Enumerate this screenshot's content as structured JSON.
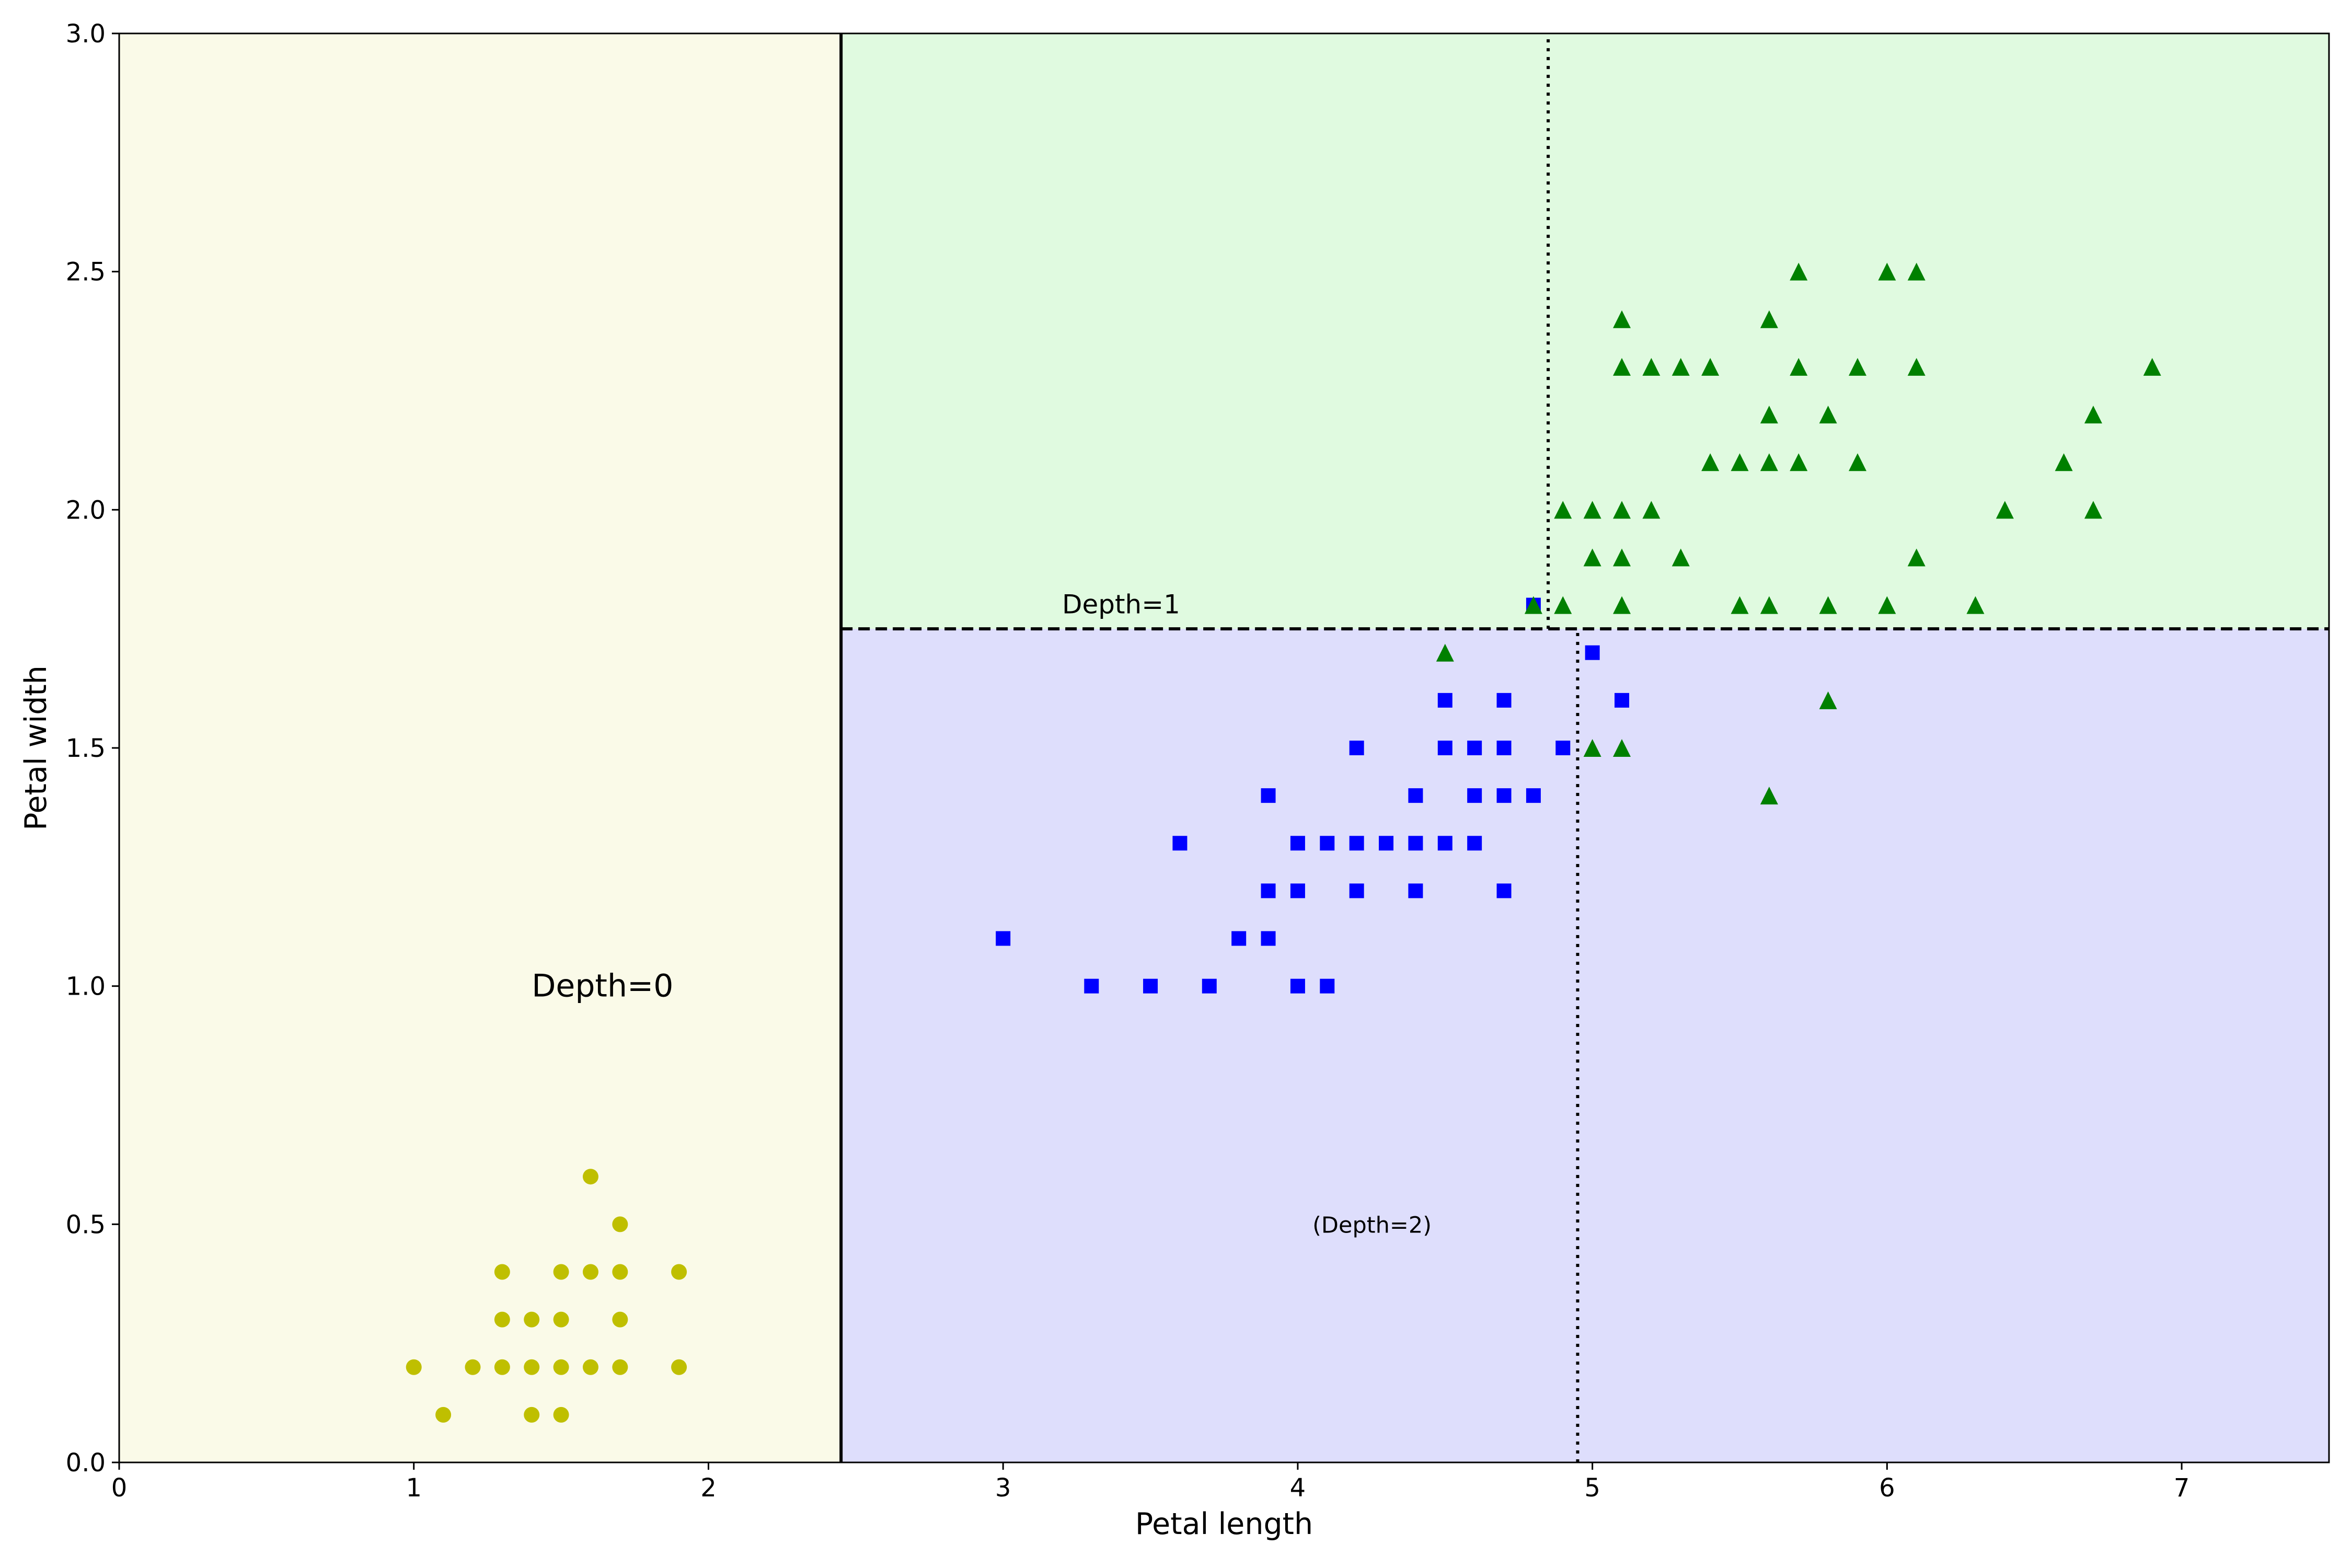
{
  "chart_data": {
    "type": "scatter",
    "xlabel": "Petal length",
    "ylabel": "Petal width",
    "xlim": [
      0,
      7.5
    ],
    "ylim": [
      0,
      3.0
    ],
    "xticks": [
      "0",
      "1",
      "2",
      "3",
      "4",
      "5",
      "6",
      "7"
    ],
    "yticks": [
      "0.0",
      "0.5",
      "1.0",
      "1.5",
      "2.0",
      "2.5",
      "3.0"
    ],
    "grid": false,
    "legend": "none",
    "regions": [
      {
        "x": [
          0,
          2.45
        ],
        "y": [
          0,
          3.0
        ],
        "color": "#fafae8"
      },
      {
        "x": [
          2.45,
          7.5
        ],
        "y": [
          1.75,
          3.0
        ],
        "color": "#e0fae0"
      },
      {
        "x": [
          2.45,
          7.5
        ],
        "y": [
          0,
          1.75
        ],
        "color": "#dedefc"
      }
    ],
    "boundaries": [
      {
        "style": "solid",
        "orientation": "vertical",
        "x": 2.45,
        "y": [
          0,
          3.0
        ]
      },
      {
        "style": "dashed",
        "orientation": "horizontal",
        "y": 1.75,
        "x": [
          2.45,
          7.5
        ]
      },
      {
        "style": "dotted",
        "orientation": "vertical",
        "x": 4.85,
        "y": [
          1.75,
          3.0
        ]
      },
      {
        "style": "dotted",
        "orientation": "vertical",
        "x": 4.95,
        "y": [
          0,
          1.75
        ]
      }
    ],
    "annotations": [
      {
        "text": "Depth=0",
        "x": 1.4,
        "y": 1.0
      },
      {
        "text": "Depth=1",
        "x": 3.2,
        "y": 1.8
      },
      {
        "text": "(Depth=2)",
        "x": 4.05,
        "y": 0.5
      }
    ],
    "series": [
      {
        "marker": "circle",
        "color": "#bfbf00",
        "points": [
          [
            1.0,
            0.2
          ],
          [
            1.1,
            0.1
          ],
          [
            1.2,
            0.2
          ],
          [
            1.3,
            0.2
          ],
          [
            1.3,
            0.3
          ],
          [
            1.3,
            0.4
          ],
          [
            1.4,
            0.1
          ],
          [
            1.4,
            0.2
          ],
          [
            1.4,
            0.3
          ],
          [
            1.5,
            0.1
          ],
          [
            1.5,
            0.2
          ],
          [
            1.5,
            0.3
          ],
          [
            1.5,
            0.4
          ],
          [
            1.6,
            0.2
          ],
          [
            1.6,
            0.4
          ],
          [
            1.6,
            0.6
          ],
          [
            1.7,
            0.2
          ],
          [
            1.7,
            0.3
          ],
          [
            1.7,
            0.4
          ],
          [
            1.7,
            0.5
          ],
          [
            1.9,
            0.2
          ],
          [
            1.9,
            0.4
          ]
        ]
      },
      {
        "marker": "square",
        "color": "#0000ff",
        "points": [
          [
            3.0,
            1.1
          ],
          [
            3.3,
            1.0
          ],
          [
            3.5,
            1.0
          ],
          [
            3.6,
            1.3
          ],
          [
            3.7,
            1.0
          ],
          [
            3.8,
            1.1
          ],
          [
            3.9,
            1.1
          ],
          [
            3.9,
            1.2
          ],
          [
            3.9,
            1.4
          ],
          [
            4.0,
            1.0
          ],
          [
            4.0,
            1.2
          ],
          [
            4.0,
            1.3
          ],
          [
            4.1,
            1.0
          ],
          [
            4.1,
            1.3
          ],
          [
            4.2,
            1.2
          ],
          [
            4.2,
            1.3
          ],
          [
            4.2,
            1.5
          ],
          [
            4.3,
            1.3
          ],
          [
            4.4,
            1.2
          ],
          [
            4.4,
            1.3
          ],
          [
            4.4,
            1.4
          ],
          [
            4.5,
            1.3
          ],
          [
            4.5,
            1.5
          ],
          [
            4.5,
            1.6
          ],
          [
            4.6,
            1.3
          ],
          [
            4.6,
            1.4
          ],
          [
            4.6,
            1.5
          ],
          [
            4.7,
            1.2
          ],
          [
            4.7,
            1.4
          ],
          [
            4.7,
            1.5
          ],
          [
            4.7,
            1.6
          ],
          [
            4.8,
            1.4
          ],
          [
            4.8,
            1.8
          ],
          [
            4.9,
            1.5
          ],
          [
            5.0,
            1.7
          ],
          [
            5.1,
            1.6
          ]
        ]
      },
      {
        "marker": "triangle",
        "color": "#008000",
        "points": [
          [
            4.5,
            1.7
          ],
          [
            4.8,
            1.8
          ],
          [
            4.9,
            1.8
          ],
          [
            4.9,
            2.0
          ],
          [
            5.0,
            1.5
          ],
          [
            5.0,
            1.9
          ],
          [
            5.0,
            2.0
          ],
          [
            5.1,
            1.5
          ],
          [
            5.1,
            1.8
          ],
          [
            5.1,
            1.9
          ],
          [
            5.1,
            2.0
          ],
          [
            5.1,
            2.3
          ],
          [
            5.1,
            2.4
          ],
          [
            5.2,
            2.0
          ],
          [
            5.2,
            2.3
          ],
          [
            5.3,
            1.9
          ],
          [
            5.3,
            2.3
          ],
          [
            5.4,
            2.1
          ],
          [
            5.4,
            2.3
          ],
          [
            5.5,
            1.8
          ],
          [
            5.5,
            2.1
          ],
          [
            5.6,
            1.4
          ],
          [
            5.6,
            1.8
          ],
          [
            5.6,
            2.1
          ],
          [
            5.6,
            2.2
          ],
          [
            5.6,
            2.4
          ],
          [
            5.7,
            2.1
          ],
          [
            5.7,
            2.3
          ],
          [
            5.7,
            2.5
          ],
          [
            5.8,
            1.6
          ],
          [
            5.8,
            1.8
          ],
          [
            5.8,
            2.2
          ],
          [
            5.9,
            2.1
          ],
          [
            5.9,
            2.3
          ],
          [
            6.0,
            1.8
          ],
          [
            6.0,
            2.5
          ],
          [
            6.1,
            1.9
          ],
          [
            6.1,
            2.3
          ],
          [
            6.1,
            2.5
          ],
          [
            6.3,
            1.8
          ],
          [
            6.4,
            2.0
          ],
          [
            6.6,
            2.1
          ],
          [
            6.7,
            2.0
          ],
          [
            6.7,
            2.2
          ],
          [
            6.9,
            2.3
          ]
        ]
      }
    ]
  }
}
